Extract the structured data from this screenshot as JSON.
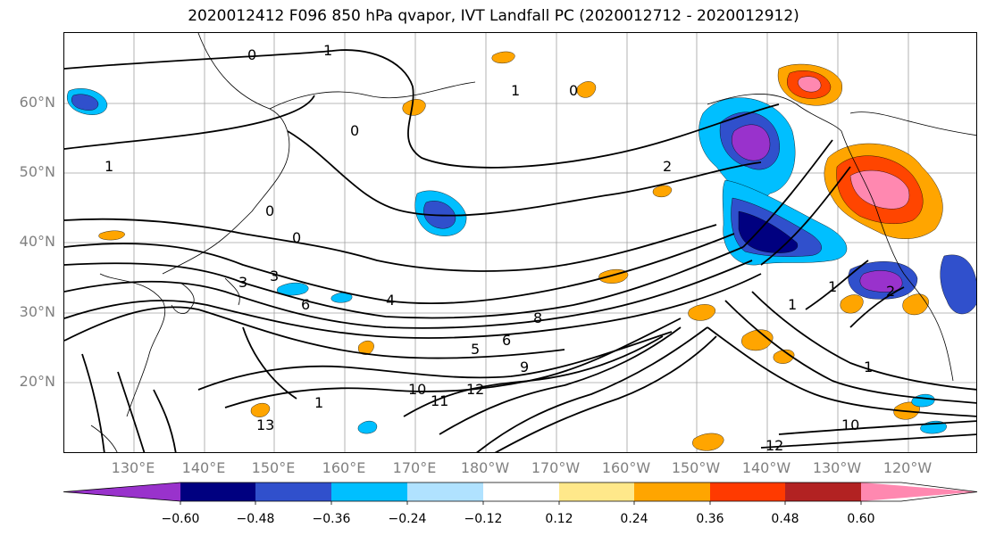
{
  "title": "2020012412 F096 850 hPa qvapor, IVT Landfall PC (2020012712 - 2020012912)",
  "map": {
    "lat_labels": [
      "60°N",
      "50°N",
      "40°N",
      "30°N",
      "20°N"
    ],
    "lon_labels": [
      "130°E",
      "140°E",
      "150°E",
      "160°E",
      "170°E",
      "180°W",
      "170°W",
      "160°W",
      "150°W",
      "140°W",
      "130°W",
      "120°W"
    ],
    "contour_labels": [
      "0",
      "1",
      "0",
      "1",
      "0",
      "1",
      "0",
      "2",
      "0",
      "3",
      "3",
      "6",
      "4",
      "8",
      "5",
      "6",
      "9",
      "10",
      "11",
      "12",
      "13",
      "1",
      "12",
      "10",
      "1",
      "1",
      "1",
      "2"
    ],
    "colors": {
      "neg_strong": "#9932cc",
      "neg_dark": "#000080",
      "neg_mid": "#3050cc",
      "neg_light": "#00bfff",
      "pos_light": "#ffa500",
      "pos_mid": "#ff4500",
      "pos_strong": "#ff88b0"
    }
  },
  "colorbar": {
    "colors": [
      "#9932cc",
      "#000080",
      "#3050cc",
      "#00bfff",
      "#b0e2ff",
      "#ffffff",
      "#ffe88a",
      "#ffa500",
      "#ff3a00",
      "#b22222",
      "#ff88b0"
    ],
    "tick_labels": [
      "−0.60",
      "−0.48",
      "−0.36",
      "−0.24",
      "−0.12",
      "0.12",
      "0.24",
      "0.36",
      "0.48",
      "0.60"
    ]
  }
}
